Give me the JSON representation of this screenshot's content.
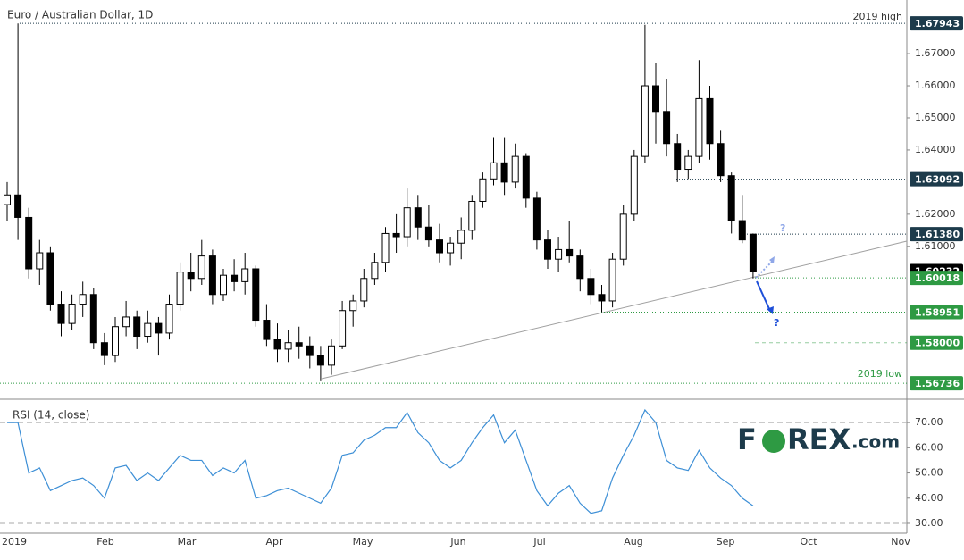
{
  "chart_data": {
    "type": "candlestick",
    "title": "Euro / Australian Dollar, 1D",
    "up_color": "#ffffff",
    "down_color": "#000000",
    "candles": [
      [
        1.623,
        1.63,
        1.618,
        1.626
      ],
      [
        1.626,
        1.6794,
        1.612,
        1.619
      ],
      [
        1.619,
        1.622,
        1.6,
        1.603
      ],
      [
        1.603,
        1.612,
        1.598,
        1.608
      ],
      [
        1.608,
        1.61,
        1.59,
        1.592
      ],
      [
        1.592,
        1.596,
        1.582,
        1.586
      ],
      [
        1.586,
        1.595,
        1.584,
        1.592
      ],
      [
        1.592,
        1.599,
        1.588,
        1.595
      ],
      [
        1.595,
        1.597,
        1.578,
        1.58
      ],
      [
        1.58,
        1.583,
        1.573,
        1.576
      ],
      [
        1.576,
        1.588,
        1.574,
        1.585
      ],
      [
        1.585,
        1.593,
        1.582,
        1.588
      ],
      [
        1.588,
        1.59,
        1.578,
        1.582
      ],
      [
        1.582,
        1.59,
        1.58,
        1.586
      ],
      [
        1.586,
        1.588,
        1.576,
        1.583
      ],
      [
        1.583,
        1.595,
        1.581,
        1.592
      ],
      [
        1.592,
        1.605,
        1.59,
        1.602
      ],
      [
        1.602,
        1.608,
        1.596,
        1.6
      ],
      [
        1.6,
        1.612,
        1.598,
        1.607
      ],
      [
        1.607,
        1.609,
        1.592,
        1.595
      ],
      [
        1.595,
        1.603,
        1.593,
        1.601
      ],
      [
        1.601,
        1.606,
        1.596,
        1.599
      ],
      [
        1.599,
        1.608,
        1.595,
        1.603
      ],
      [
        1.603,
        1.604,
        1.585,
        1.587
      ],
      [
        1.587,
        1.592,
        1.579,
        1.581
      ],
      [
        1.581,
        1.586,
        1.574,
        1.578
      ],
      [
        1.578,
        1.584,
        1.574,
        1.58
      ],
      [
        1.58,
        1.585,
        1.575,
        1.579
      ],
      [
        1.579,
        1.582,
        1.572,
        1.576
      ],
      [
        1.576,
        1.579,
        1.568,
        1.573
      ],
      [
        1.573,
        1.581,
        1.57,
        1.579
      ],
      [
        1.579,
        1.593,
        1.578,
        1.59
      ],
      [
        1.59,
        1.595,
        1.585,
        1.593
      ],
      [
        1.593,
        1.603,
        1.591,
        1.6
      ],
      [
        1.6,
        1.608,
        1.598,
        1.605
      ],
      [
        1.605,
        1.616,
        1.602,
        1.614
      ],
      [
        1.614,
        1.62,
        1.608,
        1.613
      ],
      [
        1.613,
        1.628,
        1.61,
        1.622
      ],
      [
        1.622,
        1.626,
        1.612,
        1.616
      ],
      [
        1.616,
        1.623,
        1.61,
        1.612
      ],
      [
        1.612,
        1.617,
        1.605,
        1.608
      ],
      [
        1.608,
        1.613,
        1.604,
        1.611
      ],
      [
        1.611,
        1.619,
        1.606,
        1.615
      ],
      [
        1.615,
        1.626,
        1.612,
        1.624
      ],
      [
        1.624,
        1.633,
        1.622,
        1.631
      ],
      [
        1.631,
        1.644,
        1.629,
        1.636
      ],
      [
        1.636,
        1.644,
        1.626,
        1.63
      ],
      [
        1.63,
        1.642,
        1.628,
        1.638
      ],
      [
        1.638,
        1.639,
        1.622,
        1.625
      ],
      [
        1.625,
        1.627,
        1.609,
        1.612
      ],
      [
        1.612,
        1.615,
        1.603,
        1.606
      ],
      [
        1.606,
        1.613,
        1.602,
        1.609
      ],
      [
        1.609,
        1.618,
        1.605,
        1.607
      ],
      [
        1.607,
        1.609,
        1.596,
        1.6
      ],
      [
        1.6,
        1.603,
        1.592,
        1.595
      ],
      [
        1.595,
        1.598,
        1.5895,
        1.593
      ],
      [
        1.593,
        1.608,
        1.591,
        1.606
      ],
      [
        1.606,
        1.623,
        1.604,
        1.62
      ],
      [
        1.62,
        1.64,
        1.618,
        1.638
      ],
      [
        1.638,
        1.679,
        1.636,
        1.66
      ],
      [
        1.66,
        1.667,
        1.642,
        1.652
      ],
      [
        1.652,
        1.662,
        1.638,
        1.642
      ],
      [
        1.642,
        1.645,
        1.63,
        1.634
      ],
      [
        1.634,
        1.64,
        1.631,
        1.638
      ],
      [
        1.638,
        1.668,
        1.636,
        1.656
      ],
      [
        1.656,
        1.66,
        1.637,
        1.642
      ],
      [
        1.642,
        1.646,
        1.63,
        1.632
      ],
      [
        1.632,
        1.633,
        1.614,
        1.618
      ],
      [
        1.618,
        1.626,
        1.611,
        1.612
      ],
      [
        1.6138,
        1.614,
        1.6,
        1.6023
      ]
    ],
    "ylim": [
      1.5624,
      1.6867
    ],
    "yticks": [
      {
        "value": 1.67,
        "label": "1.67000"
      },
      {
        "value": 1.66,
        "label": "1.66000"
      },
      {
        "value": 1.65,
        "label": "1.65000"
      },
      {
        "value": 1.64,
        "label": "1.64000"
      },
      {
        "value": 1.62,
        "label": "1.62000"
      },
      {
        "value": 1.61,
        "label": "1.61000"
      }
    ],
    "levels": [
      {
        "value": 1.67943,
        "label": "1.67943",
        "color": "#1d3b4b"
      },
      {
        "value": 1.63092,
        "label": "1.63092",
        "color": "#1d3b4b"
      },
      {
        "value": 1.6138,
        "label": "1.61380",
        "color": "#1d3b4b"
      },
      {
        "value": 1.60232,
        "label": "1.60232",
        "color": "#000000"
      },
      {
        "value": 1.60018,
        "label": "1.60018",
        "color": "#2e9a43"
      },
      {
        "value": 1.58951,
        "label": "1.58951",
        "color": "#2e9a43"
      },
      {
        "value": 1.58,
        "label": "1.58000",
        "color": "#2e9a43"
      },
      {
        "value": 1.56736,
        "label": "1.56736",
        "color": "#2e9a43"
      }
    ],
    "annotations": [
      "2019 high",
      "2019 low",
      "?",
      "?"
    ],
    "x_labels": [
      "2019",
      "Feb",
      "Mar",
      "Apr",
      "May",
      "Jun",
      "Jul",
      "Aug",
      "Sep",
      "Oct",
      "Nov"
    ],
    "rsi": {
      "title": "RSI (14, close)",
      "color": "#3d8fd6",
      "values": [
        70,
        70,
        50,
        52,
        43,
        45,
        47,
        48,
        45,
        40,
        52,
        53,
        47,
        50,
        47,
        52,
        57,
        55,
        55,
        49,
        52,
        50,
        55,
        40,
        41,
        43,
        44,
        42,
        40,
        38,
        44,
        57,
        58,
        63,
        65,
        68,
        68,
        74,
        66,
        62,
        55,
        52,
        55,
        62,
        68,
        73,
        62,
        67,
        55,
        43,
        37,
        42,
        45,
        38,
        34,
        35,
        48,
        57,
        65,
        75,
        70,
        55,
        52,
        51,
        59,
        52,
        48,
        45,
        40,
        37
      ],
      "ylim": [
        26.8,
        78.2
      ],
      "yticks": [
        {
          "value": 70,
          "label": "70.00"
        },
        {
          "value": 60,
          "label": "60.00"
        },
        {
          "value": 50,
          "label": "50.00"
        },
        {
          "value": 40,
          "label": "40.00"
        },
        {
          "value": 30,
          "label": "30.00"
        }
      ]
    },
    "logo": [
      "F",
      "REX",
      ".com"
    ]
  }
}
